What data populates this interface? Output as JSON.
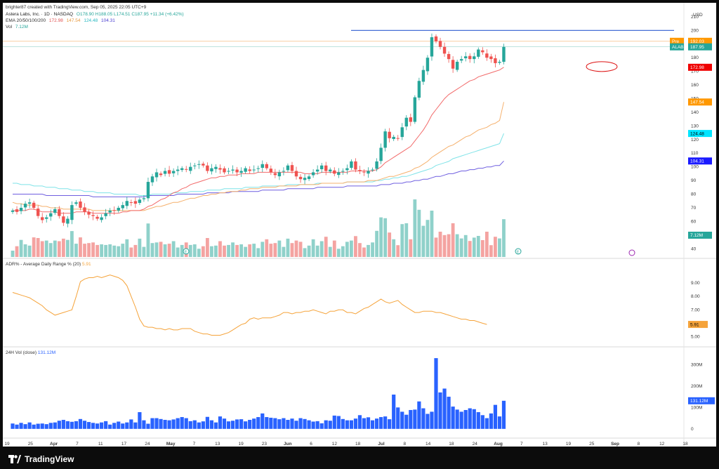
{
  "header": {
    "credit": "brighter87 created with TradingView.com, Sep 05, 2025 22:05 UTC+9",
    "title": "Astera Labs, Inc. · 1D · NASDAQ",
    "ohlc": "O178.90  H188.05  L174.51  C187.95  +11.34 (+6.42%)",
    "ema_label": "EMA 20/50/100/200",
    "ema_values": [
      "172.98",
      "147.54",
      "124.48",
      "104.31"
    ],
    "vol_label": "Vol",
    "vol_value": "7.12M",
    "currency": "USD"
  },
  "adr_pane": {
    "title": "ADR% - Average Daily Range % (20)",
    "value": "5.91"
  },
  "vol24_pane": {
    "title": "24H Vol (close)",
    "value": "131.12M"
  },
  "footer": {
    "brand": "TradingView"
  },
  "colors": {
    "up": "#26a69a",
    "down": "#ef5350",
    "ema20": "#f26a6a",
    "ema50": "#f5b06c",
    "ema100": "#7fe3e8",
    "ema200": "#6f5fe0",
    "adr": "#f5a33a",
    "vol24": "#2962ff",
    "resistance": "#2e5bd1"
  },
  "chart_data": [
    {
      "type": "candlestick",
      "title": "Astera Labs, Inc. · 1D · NASDAQ",
      "ylim": [
        35,
        212
      ],
      "y_ticks": [
        40,
        50,
        60,
        70,
        80,
        90,
        100,
        110,
        120,
        130,
        140,
        150,
        160,
        170,
        180,
        190,
        200,
        210
      ],
      "x_tick_labels": [
        "19",
        "25",
        "Apr",
        "7",
        "11",
        "17",
        "24",
        "May",
        "7",
        "13",
        "19",
        "23",
        "Jun",
        "6",
        "12",
        "18",
        "Jul",
        "8",
        "14",
        "18",
        "24",
        "Aug",
        "7",
        "13",
        "19",
        "25",
        "Sep",
        "8",
        "12",
        "18"
      ],
      "price_labels": [
        {
          "label": "Pre",
          "value": "192.03",
          "color": "#ff9800"
        },
        {
          "label": "ALAB",
          "value": "187.95",
          "color": "#26a69a"
        },
        {
          "label": "",
          "value": "172.98",
          "color": "#ef0000"
        },
        {
          "label": "",
          "value": "147.54",
          "color": "#ff9800"
        },
        {
          "label": "",
          "value": "124.48",
          "color": "#00e5ff"
        },
        {
          "label": "",
          "value": "104.31",
          "color": "#1a1aff"
        }
      ],
      "resistance_level": 200,
      "closes": [
        68,
        67,
        70,
        73,
        74,
        70,
        64,
        61,
        63,
        66,
        69,
        64,
        59,
        62,
        72,
        74,
        70,
        67,
        65,
        64,
        62,
        63,
        66,
        68,
        68,
        70,
        72,
        75,
        74,
        73,
        76,
        77,
        89,
        93,
        96,
        94,
        97,
        95,
        97,
        98,
        99,
        98,
        100,
        101,
        102,
        101,
        97,
        99,
        100,
        98,
        96,
        97,
        98,
        96,
        97,
        99,
        97,
        98,
        99,
        102,
        99,
        96,
        94,
        96,
        97,
        101,
        97,
        93,
        91,
        92,
        93,
        96,
        98,
        101,
        97,
        98,
        95,
        96,
        97,
        99,
        104,
        98,
        97,
        96,
        97,
        98,
        104,
        114,
        126,
        121,
        122,
        121,
        129,
        136,
        133,
        151,
        163,
        171,
        180,
        195,
        192,
        188,
        183,
        179,
        172,
        177,
        179,
        181,
        179,
        181,
        186,
        184,
        180,
        179,
        176,
        177,
        187.95
      ],
      "ema20": [
        68,
        68,
        68,
        68,
        69,
        69,
        68,
        67,
        67,
        67,
        67,
        66,
        66,
        66,
        66,
        67,
        67,
        67,
        67,
        66,
        66,
        66,
        66,
        66,
        66,
        66,
        67,
        67,
        68,
        68,
        68,
        69,
        71,
        72,
        74,
        76,
        77,
        79,
        81,
        82,
        84,
        85,
        87,
        88,
        89,
        90,
        91,
        92,
        92,
        93,
        93,
        94,
        94,
        94,
        95,
        95,
        95,
        95,
        96,
        96,
        96,
        96,
        96,
        96,
        96,
        96,
        96,
        96,
        96,
        95,
        95,
        95,
        95,
        96,
        96,
        96,
        96,
        96,
        96,
        96,
        97,
        97,
        97,
        97,
        97,
        97,
        98,
        100,
        103,
        105,
        107,
        109,
        111,
        113,
        115,
        119,
        123,
        127,
        132,
        138,
        142,
        146,
        150,
        153,
        155,
        157,
        159,
        161,
        163,
        164,
        166,
        167,
        168,
        169,
        170,
        171,
        172.98
      ],
      "ema50": [
        74,
        73,
        73,
        72,
        72,
        72,
        72,
        71,
        71,
        70,
        70,
        70,
        69,
        69,
        69,
        69,
        69,
        69,
        69,
        68,
        68,
        68,
        68,
        68,
        68,
        68,
        68,
        68,
        68,
        68,
        68,
        68,
        69,
        70,
        71,
        71,
        72,
        73,
        74,
        74,
        75,
        76,
        77,
        77,
        78,
        79,
        79,
        80,
        80,
        81,
        81,
        82,
        82,
        82,
        83,
        83,
        84,
        84,
        84,
        85,
        85,
        85,
        85,
        86,
        86,
        86,
        86,
        86,
        87,
        87,
        87,
        87,
        87,
        88,
        88,
        88,
        88,
        88,
        88,
        89,
        89,
        89,
        89,
        89,
        90,
        90,
        90,
        91,
        92,
        93,
        93,
        94,
        95,
        96,
        97,
        99,
        100,
        102,
        104,
        107,
        109,
        111,
        113,
        115,
        116,
        118,
        120,
        122,
        123,
        125,
        127,
        128,
        129,
        131,
        132,
        134,
        147.54
      ],
      "ema100": [
        88,
        88,
        87,
        87,
        87,
        86,
        86,
        86,
        85,
        85,
        85,
        84,
        84,
        84,
        83,
        83,
        83,
        82,
        82,
        82,
        81,
        81,
        81,
        81,
        80,
        80,
        80,
        80,
        80,
        80,
        79,
        79,
        79,
        80,
        80,
        80,
        80,
        80,
        81,
        81,
        81,
        81,
        82,
        82,
        82,
        82,
        83,
        83,
        83,
        83,
        84,
        84,
        84,
        84,
        84,
        85,
        85,
        85,
        85,
        86,
        86,
        86,
        86,
        86,
        86,
        87,
        87,
        87,
        87,
        87,
        87,
        87,
        88,
        88,
        88,
        88,
        88,
        88,
        88,
        89,
        89,
        89,
        89,
        89,
        89,
        89,
        90,
        90,
        91,
        91,
        92,
        92,
        93,
        93,
        94,
        95,
        96,
        97,
        98,
        99,
        101,
        102,
        103,
        104,
        106,
        107,
        108,
        109,
        110,
        111,
        112,
        113,
        114,
        115,
        116,
        117,
        124.48
      ],
      "ema200": [
        80,
        80,
        80,
        80,
        80,
        80,
        80,
        80,
        79,
        79,
        79,
        79,
        79,
        79,
        79,
        79,
        79,
        79,
        79,
        78,
        78,
        78,
        78,
        78,
        78,
        78,
        78,
        78,
        78,
        78,
        78,
        78,
        79,
        79,
        79,
        79,
        79,
        79,
        79,
        80,
        80,
        80,
        80,
        80,
        80,
        80,
        81,
        81,
        81,
        81,
        81,
        81,
        82,
        82,
        82,
        82,
        82,
        82,
        82,
        83,
        83,
        83,
        83,
        83,
        83,
        84,
        84,
        84,
        84,
        84,
        84,
        84,
        85,
        85,
        85,
        85,
        85,
        85,
        85,
        86,
        86,
        86,
        86,
        86,
        86,
        86,
        86,
        87,
        87,
        87,
        88,
        88,
        88,
        89,
        89,
        90,
        90,
        91,
        91,
        92,
        93,
        93,
        94,
        95,
        95,
        96,
        97,
        97,
        98,
        98,
        99,
        99,
        100,
        100,
        101,
        101,
        104.31
      ],
      "volume_ticks": [
        40,
        50,
        60,
        70,
        80
      ],
      "volume_value": "7.12M"
    },
    {
      "type": "line",
      "title": "ADR% - Average Daily Range % (20)",
      "ylim": [
        4.5,
        10
      ],
      "y_ticks": [
        5,
        6,
        7,
        8,
        9
      ],
      "values": [
        8.3,
        8.2,
        8.1,
        8.0,
        7.9,
        7.7,
        7.5,
        7.3,
        7.0,
        6.8,
        6.6,
        6.7,
        6.8,
        6.9,
        7.0,
        8.0,
        9.1,
        9.3,
        9.4,
        9.4,
        9.5,
        9.4,
        9.5,
        9.6,
        9.5,
        9.4,
        9.2,
        8.8,
        8.0,
        7.2,
        6.3,
        5.8,
        5.7,
        5.7,
        5.6,
        5.6,
        5.5,
        5.6,
        5.5,
        5.5,
        5.6,
        5.6,
        5.6,
        5.4,
        5.3,
        5.2,
        5.2,
        5.1,
        5.1,
        5.1,
        5.2,
        5.3,
        5.5,
        5.7,
        5.9,
        6.0,
        6.3,
        6.4,
        6.3,
        6.4,
        6.4,
        6.4,
        6.5,
        6.6,
        6.8,
        6.8,
        6.7,
        6.8,
        6.8,
        6.9,
        6.9,
        7.0,
        6.9,
        6.8,
        6.7,
        6.9,
        6.9,
        7.0,
        7.0,
        6.8,
        6.8,
        6.7,
        6.9,
        7.1,
        7.2,
        7.4,
        7.6,
        7.8,
        7.6,
        7.5,
        7.6,
        7.7,
        7.4,
        7.2,
        7.0,
        6.8,
        6.8,
        6.9,
        6.9,
        6.9,
        6.8,
        6.8,
        6.7,
        6.6,
        6.5,
        6.4,
        6.3,
        6.3,
        6.2,
        6.2,
        6.1,
        6.0,
        5.91
      ],
      "last_value": "5.91"
    },
    {
      "type": "bar",
      "title": "24H Vol (close)",
      "ylim": [
        -30,
        350
      ],
      "y_ticks": [
        "0",
        "100M",
        "200M",
        "300M"
      ],
      "values": [
        25,
        20,
        28,
        22,
        30,
        20,
        24,
        25,
        22,
        28,
        30,
        38,
        42,
        36,
        33,
        36,
        46,
        38,
        32,
        28,
        25,
        30,
        36,
        20,
        28,
        34,
        25,
        30,
        44,
        30,
        78,
        40,
        24,
        50,
        50,
        46,
        42,
        40,
        44,
        50,
        55,
        50,
        36,
        40,
        30,
        35,
        56,
        40,
        30,
        58,
        48,
        35,
        38,
        44,
        45,
        35,
        42,
        48,
        55,
        72,
        55,
        52,
        50,
        45,
        50,
        42,
        48,
        38,
        50,
        46,
        40,
        34,
        36,
        26,
        40,
        38,
        62,
        60,
        46,
        40,
        40,
        48,
        64,
        50,
        54,
        40,
        48,
        55,
        58,
        45,
        160,
        100,
        80,
        66,
        88,
        90,
        128,
        96,
        70,
        80,
        330,
        170,
        188,
        150,
        104,
        90,
        80,
        88,
        96,
        92,
        78,
        64,
        50,
        72,
        112,
        58,
        131.12
      ],
      "last_value": "131.12M"
    }
  ]
}
